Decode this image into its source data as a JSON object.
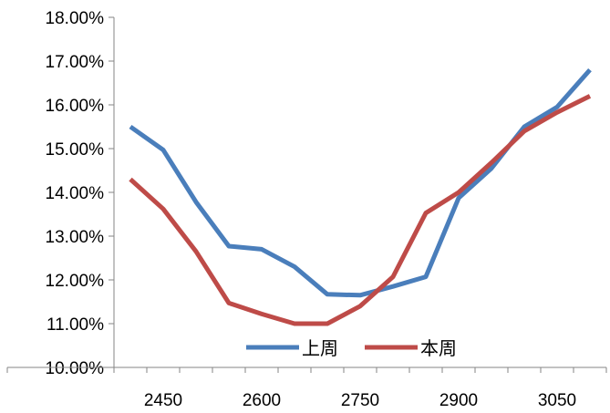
{
  "chart_data": {
    "type": "line",
    "title": "",
    "xlabel": "",
    "ylabel": "",
    "x": [
      2400,
      2450,
      2500,
      2550,
      2600,
      2650,
      2700,
      2750,
      2800,
      2850,
      2900,
      2950,
      3000,
      3050,
      3100
    ],
    "x_tick_labels": [
      "2450",
      "2600",
      "2750",
      "2900",
      "3050"
    ],
    "x_tick_values": [
      2450,
      2600,
      2750,
      2900,
      3050
    ],
    "xlim": [
      2375,
      3125
    ],
    "y_tick_labels": [
      "10.00%",
      "11.00%",
      "12.00%",
      "13.00%",
      "14.00%",
      "15.00%",
      "16.00%",
      "17.00%",
      "18.00%"
    ],
    "ylim": [
      10,
      18
    ],
    "grid": false,
    "legend_position": "bottom-center",
    "series": [
      {
        "name": "上周",
        "color": "#4a7ebb",
        "values": [
          15.5,
          14.97,
          13.78,
          12.77,
          12.7,
          12.3,
          11.67,
          11.65,
          11.85,
          12.07,
          13.87,
          14.55,
          15.5,
          15.95,
          16.8
        ]
      },
      {
        "name": "本周",
        "color": "#be4b48",
        "values": [
          14.3,
          13.62,
          12.65,
          11.47,
          11.22,
          11.0,
          11.0,
          11.4,
          12.07,
          13.53,
          14.0,
          14.68,
          15.4,
          15.83,
          16.2
        ]
      }
    ]
  }
}
